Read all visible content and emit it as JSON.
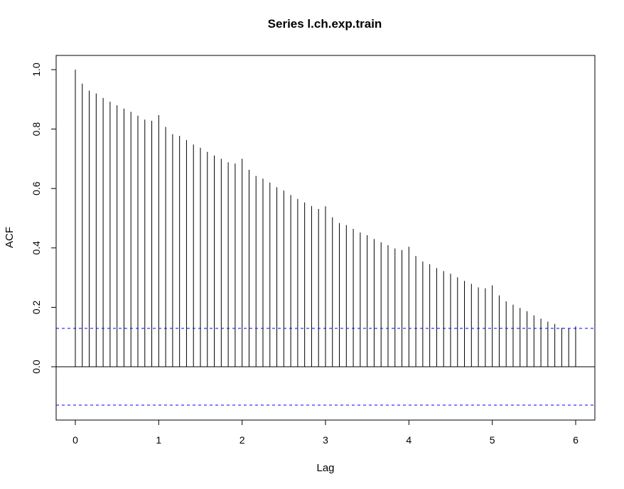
{
  "chart_data": {
    "type": "bar",
    "title": "Series  l.ch.exp.train",
    "xlabel": "Lag",
    "ylabel": "ACF",
    "xlim": [
      0,
      6
    ],
    "ylim": [
      -0.1291,
      1.0
    ],
    "xticks": [
      "0",
      "1",
      "2",
      "3",
      "4",
      "5",
      "6"
    ],
    "yticks": [
      "0.0",
      "0.2",
      "0.4",
      "0.6",
      "0.8",
      "1.0"
    ],
    "lag_step": 0.08333,
    "acf": [
      1.0,
      0.953,
      0.929,
      0.92,
      0.905,
      0.892,
      0.88,
      0.869,
      0.858,
      0.845,
      0.832,
      0.828,
      0.847,
      0.807,
      0.783,
      0.777,
      0.763,
      0.748,
      0.737,
      0.723,
      0.711,
      0.7,
      0.688,
      0.684,
      0.7,
      0.663,
      0.642,
      0.633,
      0.62,
      0.604,
      0.593,
      0.578,
      0.565,
      0.553,
      0.541,
      0.531,
      0.54,
      0.503,
      0.484,
      0.477,
      0.464,
      0.452,
      0.443,
      0.43,
      0.419,
      0.409,
      0.398,
      0.393,
      0.404,
      0.373,
      0.354,
      0.345,
      0.332,
      0.322,
      0.313,
      0.301,
      0.289,
      0.279,
      0.267,
      0.264,
      0.274,
      0.24,
      0.22,
      0.209,
      0.198,
      0.187,
      0.173,
      0.162,
      0.152,
      0.144,
      0.131,
      0.128,
      0.136
    ],
    "confidence_bound": 0.1291,
    "colors": {
      "bars": "#000000",
      "confidence": "#0000ff"
    },
    "grid": false,
    "legend": "none"
  }
}
